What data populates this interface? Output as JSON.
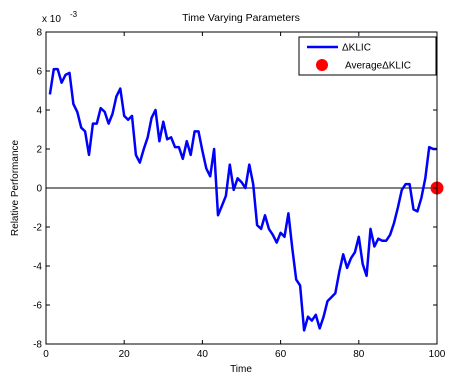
{
  "chart_data": {
    "type": "line",
    "title": "Time Varying Parameters",
    "xlabel": "Time",
    "ylabel": "Relative Performance",
    "exponent_label": "x 10",
    "exponent_power": "-3",
    "xlim": [
      0,
      100
    ],
    "ylim": [
      -8,
      8
    ],
    "xticks": [
      0,
      20,
      40,
      60,
      80,
      100
    ],
    "yticks": [
      -8,
      -6,
      -4,
      -2,
      0,
      2,
      4,
      6,
      8
    ],
    "xtick_labels": [
      "0",
      "20",
      "40",
      "60",
      "80",
      "100"
    ],
    "ytick_labels": [
      "-8",
      "-6",
      "-4",
      "-2",
      "0",
      "2",
      "4",
      "6",
      "8"
    ],
    "grid": false,
    "legend_position": "top-right",
    "reference_line_y": 0,
    "series": [
      {
        "name": "ΔKLIC",
        "color": "#0000ff",
        "style": "line",
        "x": [
          1,
          2,
          3,
          4,
          5,
          6,
          7,
          8,
          9,
          10,
          11,
          12,
          13,
          14,
          15,
          16,
          17,
          18,
          19,
          20,
          21,
          22,
          23,
          24,
          25,
          26,
          27,
          28,
          29,
          30,
          31,
          32,
          33,
          34,
          35,
          36,
          37,
          38,
          39,
          40,
          41,
          42,
          43,
          44,
          45,
          46,
          47,
          48,
          49,
          50,
          51,
          52,
          53,
          54,
          55,
          56,
          57,
          58,
          59,
          60,
          61,
          62,
          63,
          64,
          65,
          66,
          67,
          68,
          69,
          70,
          71,
          72,
          73,
          74,
          75,
          76,
          77,
          78,
          79,
          80,
          81,
          82,
          83,
          84,
          85,
          86,
          87,
          88,
          89,
          90,
          91,
          92,
          93,
          94,
          95,
          96,
          97,
          98,
          99,
          100
        ],
        "values": [
          4.8,
          6.1,
          6.1,
          5.4,
          5.8,
          5.9,
          4.3,
          3.9,
          3.1,
          2.9,
          1.7,
          3.3,
          3.3,
          4.1,
          3.9,
          3.3,
          3.8,
          4.7,
          5.1,
          3.7,
          3.5,
          3.7,
          1.7,
          1.3,
          2.0,
          2.6,
          3.6,
          4.0,
          2.4,
          3.4,
          2.5,
          2.6,
          2.1,
          2.1,
          1.5,
          2.4,
          1.7,
          2.9,
          2.9,
          1.9,
          1.0,
          0.6,
          2.0,
          -1.4,
          -0.9,
          -0.4,
          1.2,
          -0.1,
          0.5,
          0.3,
          0.0,
          1.2,
          0.2,
          -1.9,
          -2.1,
          -1.4,
          -2.1,
          -2.4,
          -2.8,
          -2.3,
          -2.5,
          -1.3,
          -3.1,
          -4.7,
          -5.0,
          -7.3,
          -6.6,
          -6.8,
          -6.5,
          -7.2,
          -6.6,
          -5.8,
          -5.6,
          -5.4,
          -4.3,
          -3.4,
          -4.1,
          -3.6,
          -3.3,
          -2.5,
          -3.9,
          -4.5,
          -2.1,
          -3.0,
          -2.6,
          -2.7,
          -2.7,
          -2.4,
          -1.8,
          -1.0,
          -0.1,
          0.2,
          0.2,
          -1.1,
          -1.2,
          -0.5,
          0.5,
          2.1,
          2.0,
          2.0
        ]
      },
      {
        "name": "AverageΔKLIC",
        "color": "#ff0000",
        "style": "marker",
        "x": [
          100
        ],
        "values": [
          0
        ]
      }
    ]
  }
}
